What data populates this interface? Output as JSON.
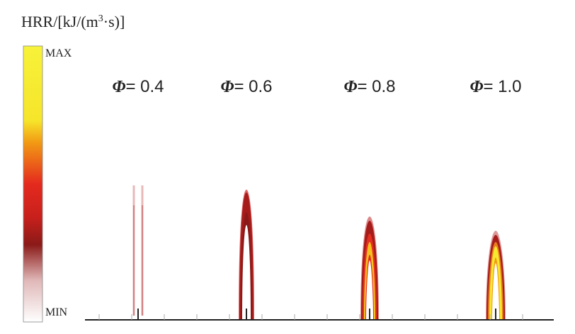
{
  "title": {
    "base": "HRR/[kJ/(m",
    "superscript": "3",
    "rest": "·s)]"
  },
  "colorbar": {
    "max_label": "MAX",
    "min_label": "MIN"
  },
  "panels": [
    {
      "symbol": "Φ",
      "label": "= 0.4"
    },
    {
      "symbol": "Φ",
      "label": "= 0.6"
    },
    {
      "symbol": "Φ",
      "label": "= 0.8"
    },
    {
      "symbol": "Φ",
      "label": "= 1.0"
    }
  ]
}
